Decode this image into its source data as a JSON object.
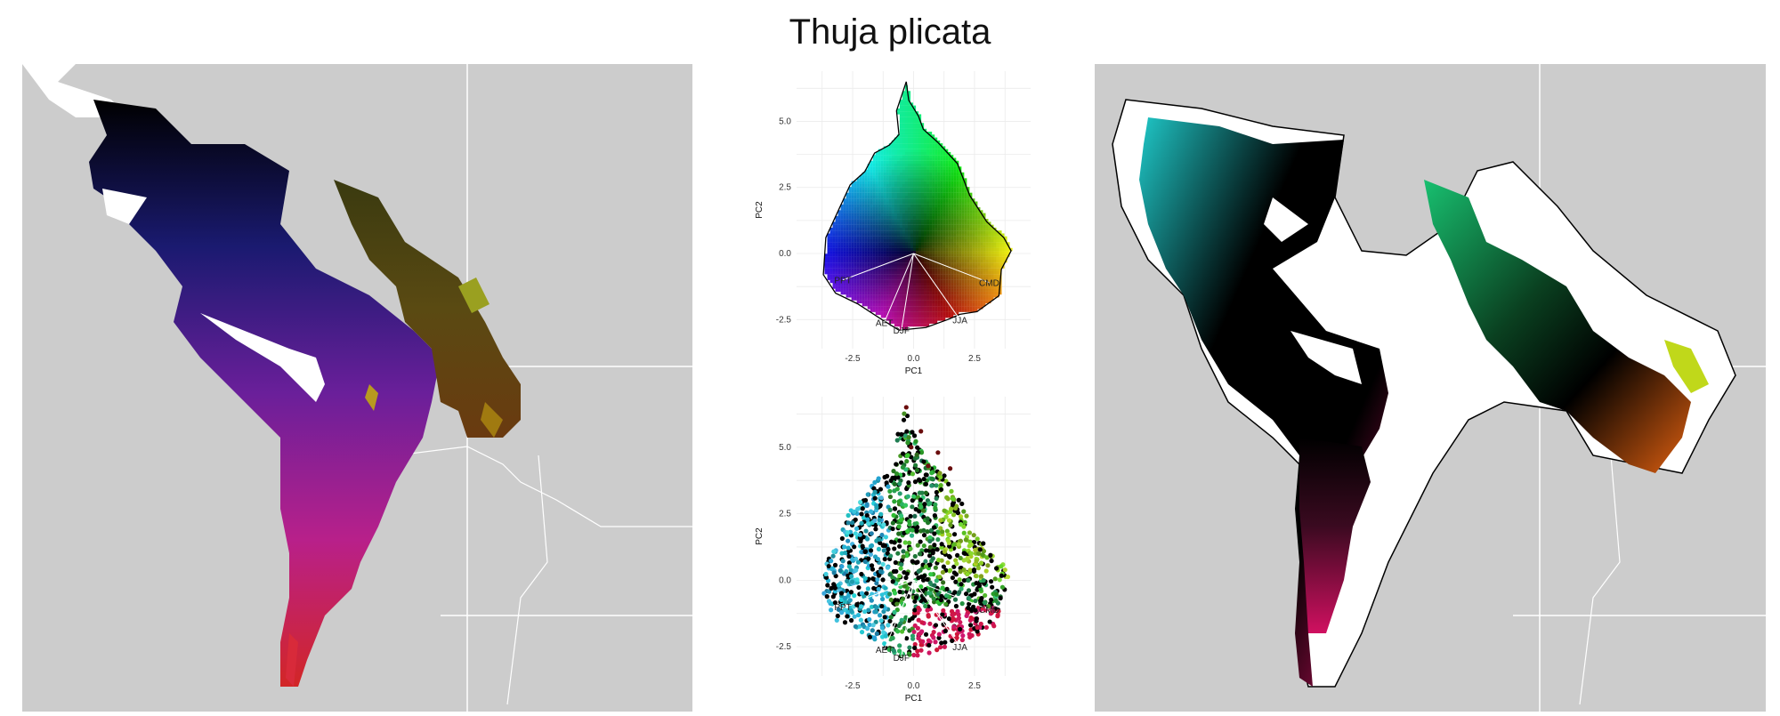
{
  "title": "Thuja plicata",
  "chart_data": [
    {
      "type": "map",
      "panel": "left",
      "description_colors": [
        "#000000",
        "#2a1a8a",
        "#7a1fa0",
        "#c0208a",
        "#d2242a",
        "#8a6a10"
      ]
    },
    {
      "type": "scatter",
      "panel": "pca-top",
      "xlabel": "PC1",
      "ylabel": "PC2",
      "x_ticks": [
        -2.5,
        0.0,
        2.5
      ],
      "y_ticks": [
        -2.5,
        0.0,
        2.5,
        5.0
      ],
      "x_tick_labels": [
        "-2.5",
        "0.0",
        "2.5"
      ],
      "y_tick_labels": [
        "-2.5",
        "0.0",
        "2.5",
        "5.0"
      ],
      "xlim": [
        -4.8,
        4.8
      ],
      "ylim": [
        -3.6,
        6.9
      ],
      "grid": true,
      "loadings": [
        {
          "label": "PPT",
          "x": -2.9,
          "y": -1.0
        },
        {
          "label": "AET",
          "x": -1.2,
          "y": -2.6
        },
        {
          "label": "DJF",
          "x": -0.5,
          "y": -2.9
        },
        {
          "label": "JJA",
          "x": 1.9,
          "y": -2.5
        },
        {
          "label": "CMD",
          "x": 3.1,
          "y": -1.1
        }
      ],
      "hull": [
        [
          -0.3,
          6.5
        ],
        [
          -0.2,
          5.8
        ],
        [
          0.2,
          5.2
        ],
        [
          0.4,
          4.7
        ],
        [
          1.0,
          4.2
        ],
        [
          1.8,
          3.4
        ],
        [
          2.3,
          2.2
        ],
        [
          3.0,
          1.2
        ],
        [
          3.7,
          0.6
        ],
        [
          4.0,
          0.1
        ],
        [
          3.6,
          -0.6
        ],
        [
          3.5,
          -1.6
        ],
        [
          2.6,
          -2.2
        ],
        [
          1.9,
          -2.3
        ],
        [
          1.4,
          -2.5
        ],
        [
          0.5,
          -2.8
        ],
        [
          -0.6,
          -2.9
        ],
        [
          -1.3,
          -2.5
        ],
        [
          -2.3,
          -1.9
        ],
        [
          -3.2,
          -1.5
        ],
        [
          -3.7,
          -0.8
        ],
        [
          -3.6,
          0.6
        ],
        [
          -3.2,
          1.4
        ],
        [
          -2.6,
          2.6
        ],
        [
          -2.0,
          3.1
        ],
        [
          -1.6,
          3.8
        ],
        [
          -1.0,
          4.1
        ],
        [
          -0.6,
          4.5
        ],
        [
          -0.7,
          5.4
        ],
        [
          -0.3,
          6.5
        ]
      ]
    },
    {
      "type": "scatter",
      "panel": "pca-bottom",
      "xlabel": "PC1",
      "ylabel": "PC2",
      "x_ticks": [
        -2.5,
        0.0,
        2.5
      ],
      "y_ticks": [
        -2.5,
        0.0,
        2.5,
        5.0
      ],
      "x_tick_labels": [
        "-2.5",
        "0.0",
        "2.5"
      ],
      "y_tick_labels": [
        "-2.5",
        "0.0",
        "2.5",
        "5.0"
      ],
      "xlim": [
        -4.8,
        4.8
      ],
      "ylim": [
        -3.6,
        6.9
      ],
      "grid": true,
      "loadings": [
        {
          "label": "PPT",
          "x": -2.9,
          "y": -1.0
        },
        {
          "label": "AET",
          "x": -1.2,
          "y": -2.6
        },
        {
          "label": "DJF",
          "x": -0.5,
          "y": -2.9
        },
        {
          "label": "JJA",
          "x": 1.9,
          "y": -2.5
        },
        {
          "label": "CMD",
          "x": 3.1,
          "y": -1.1
        }
      ]
    },
    {
      "type": "map",
      "panel": "right",
      "description_colors": [
        "#000000",
        "#1fc8c8",
        "#18c070",
        "#39e84a",
        "#c0d81a",
        "#e06010",
        "#d01060"
      ]
    }
  ]
}
